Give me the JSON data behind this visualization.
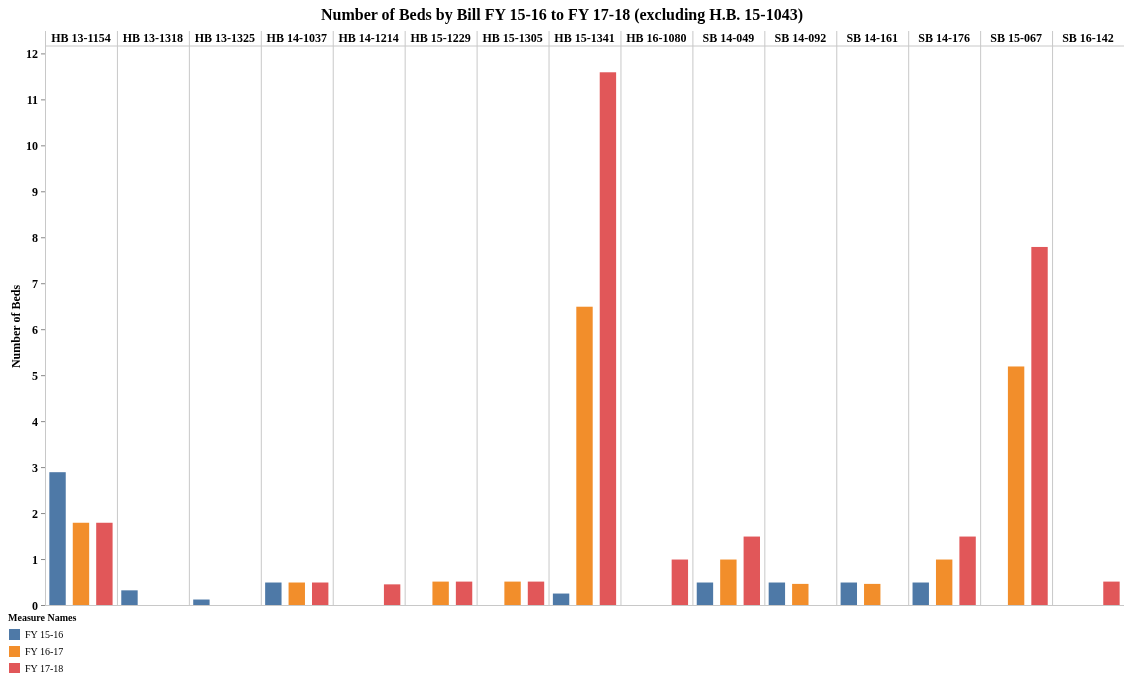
{
  "chart_data": {
    "type": "bar",
    "title": "Number of Beds by Bill FY 15-16 to FY 17-18 (excluding H.B. 15-1043)",
    "ylabel": "Number of Beds",
    "legend_title": "Measure Names",
    "legend": "bottom left",
    "categories": [
      "HB 13-1154",
      "HB 13-1318",
      "HB 13-1325",
      "HB 14-1037",
      "HB 14-1214",
      "HB 15-1229",
      "HB 15-1305",
      "HB 15-1341",
      "HB 16-1080",
      "SB 14-049",
      "SB 14-092",
      "SB 14-161",
      "SB 14-176",
      "SB 15-067",
      "SB 16-142"
    ],
    "series": [
      {
        "name": "FY 15-16",
        "color": "#4e79a7",
        "values": [
          2.9,
          0.33,
          0.13,
          0.5,
          null,
          null,
          null,
          0.26,
          null,
          0.5,
          0.5,
          0.5,
          0.5,
          null,
          null
        ]
      },
      {
        "name": "FY 16-17",
        "color": "#f28e2b",
        "values": [
          1.8,
          null,
          null,
          0.5,
          null,
          0.52,
          0.52,
          6.5,
          null,
          1.0,
          0.47,
          0.47,
          1.0,
          5.2,
          null
        ]
      },
      {
        "name": "FY 17-18",
        "color": "#e15759",
        "values": [
          1.8,
          null,
          null,
          0.5,
          0.46,
          0.52,
          0.52,
          11.6,
          1.0,
          1.5,
          null,
          null,
          1.5,
          7.8,
          0.52
        ]
      }
    ],
    "ylim": [
      0,
      12.15
    ],
    "yticks": [
      0,
      1,
      2,
      3,
      4,
      5,
      6,
      7,
      8,
      9,
      10,
      11,
      12
    ],
    "grid": false
  }
}
